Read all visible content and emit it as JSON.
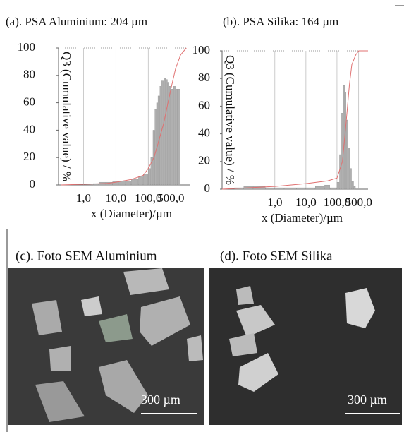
{
  "chart_data": [
    {
      "type": "histogram",
      "title": "(a). PSA Aluminium: 204 µm",
      "y_label": "Q3 (Cumulative value) / %",
      "x_label": "x (Diameter)/µm",
      "xscale": "log",
      "xlim": [
        0.17,
        2000
      ],
      "ylim": [
        0,
        100
      ],
      "xticks": [
        {
          "value": 1,
          "label": "1,0"
        },
        {
          "value": 10,
          "label": "10,0"
        },
        {
          "value": 100,
          "label": "100,0"
        },
        {
          "value": 500,
          "label": "500,0"
        }
      ],
      "yticks": [
        0,
        20,
        40,
        60,
        80,
        100
      ],
      "grid": "x",
      "color": "#b0b0b0",
      "bins": [
        2,
        3,
        5,
        8,
        12,
        20,
        30,
        50,
        70,
        100,
        120,
        140,
        160,
        180,
        200,
        230,
        260,
        300,
        350,
        400,
        450,
        500,
        600,
        700,
        800,
        1000
      ],
      "values": [
        1,
        2,
        2,
        3,
        3,
        3,
        4,
        6,
        8,
        12,
        20,
        40,
        55,
        60,
        65,
        72,
        76,
        78,
        77,
        75,
        72,
        70,
        72,
        70,
        70
      ],
      "line": {
        "color": "#e07070",
        "x": [
          0.2,
          1,
          5,
          10,
          30,
          70,
          100,
          150,
          200,
          300,
          500,
          700,
          1000,
          1500
        ],
        "values": [
          0,
          0.5,
          1,
          2,
          4,
          7,
          12,
          20,
          30,
          45,
          70,
          85,
          95,
          100
        ]
      }
    },
    {
      "type": "histogram",
      "title": "(b). PSA Silika: 164 µm",
      "y_label": "Q3 (Cumulative value) / %",
      "x_label": "x (Diameter)/µm",
      "xscale": "log",
      "xlim": [
        0.02,
        1000
      ],
      "ylim": [
        0,
        100
      ],
      "xticks": [
        {
          "value": 1,
          "label": "1,0"
        },
        {
          "value": 10,
          "label": "10,0"
        },
        {
          "value": 100,
          "label": "100,0"
        },
        {
          "value": 500,
          "label": "500,0"
        }
      ],
      "yticks": [
        0,
        20,
        40,
        60,
        80,
        100
      ],
      "grid": "x",
      "color": "#b0b0b0",
      "bins": [
        0.05,
        0.1,
        0.2,
        0.5,
        1,
        2,
        5,
        10,
        20,
        40,
        60,
        100,
        120,
        140,
        160,
        180,
        200,
        230,
        260,
        300,
        350,
        400
      ],
      "values": [
        1,
        2,
        2,
        1,
        1,
        1,
        1,
        1,
        2,
        3,
        1,
        5,
        25,
        55,
        75,
        70,
        50,
        30,
        15,
        6,
        2
      ],
      "line": {
        "color": "#e07070",
        "x": [
          0.02,
          1,
          10,
          50,
          100,
          150,
          200,
          250,
          300,
          400,
          500,
          1000
        ],
        "values": [
          0,
          2,
          4,
          6,
          8,
          20,
          50,
          75,
          90,
          97,
          100,
          100
        ]
      }
    }
  ],
  "images": [
    {
      "caption": "(c). Foto SEM Aluminium",
      "scale_bar": "300 µm"
    },
    {
      "caption": "(d). Foto SEM Silika",
      "scale_bar": "300 µm"
    }
  ]
}
